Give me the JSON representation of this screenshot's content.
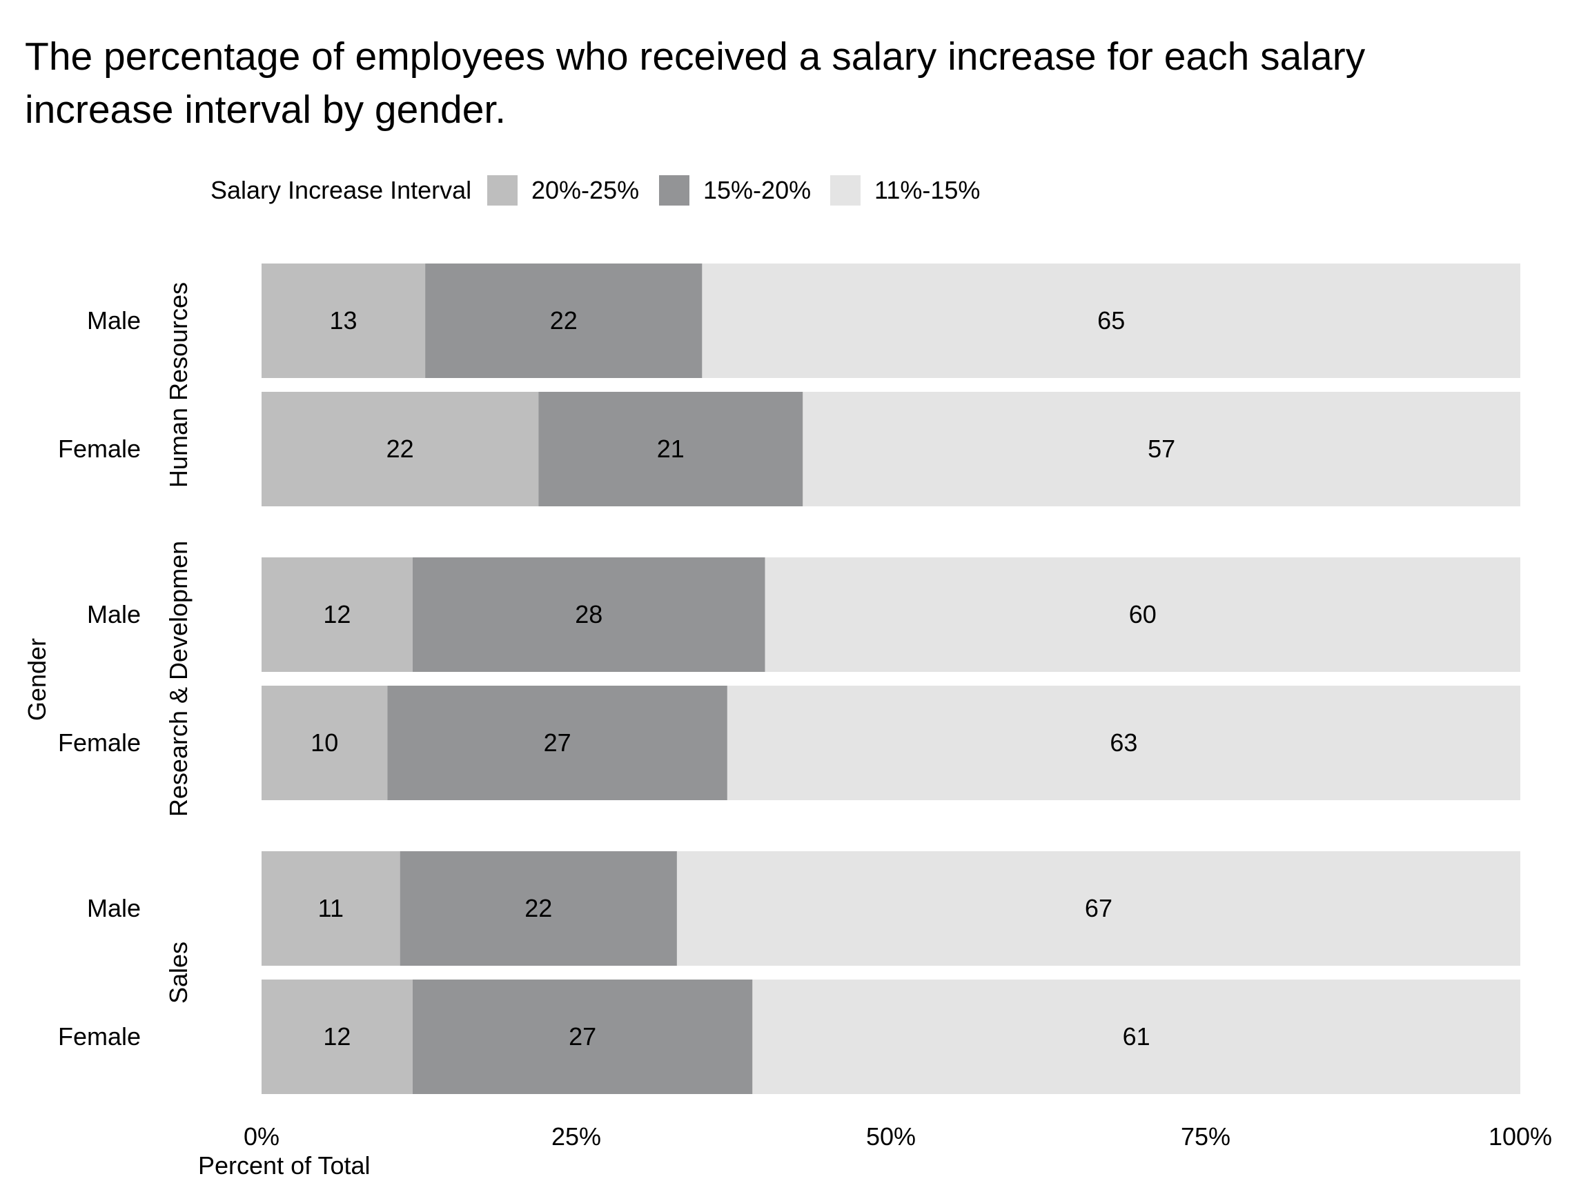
{
  "title_lines": [
    "The percentage of employees who received a salary increase for each salary",
    "increase interval by gender."
  ],
  "legend": {
    "title": "Salary Increase Interval",
    "items": [
      {
        "label": "20%-25%",
        "color": "#BEBEBE"
      },
      {
        "label": "15%-20%",
        "color": "#939496"
      },
      {
        "label": "11%-15%",
        "color": "#E4E4E4"
      }
    ]
  },
  "chart_data": {
    "type": "bar",
    "orientation": "horizontal",
    "stacked": true,
    "xlabel": "Percent of Total",
    "ylabel": "Gender",
    "xlim": [
      0,
      100
    ],
    "x_ticks": [
      "0%",
      "25%",
      "50%",
      "75%",
      "100%"
    ],
    "x_tick_values": [
      0,
      25,
      50,
      75,
      100
    ],
    "grid": false,
    "legend_position": "top",
    "series": [
      {
        "name": "20%-25%",
        "color": "#BEBEBE"
      },
      {
        "name": "15%-20%",
        "color": "#939496"
      },
      {
        "name": "11%-15%",
        "color": "#E4E4E4"
      }
    ],
    "facets": [
      {
        "label": "Human Resources",
        "rows": [
          {
            "category": "Male",
            "values": [
              13,
              22,
              65
            ]
          },
          {
            "category": "Female",
            "values": [
              22,
              21,
              57
            ]
          }
        ]
      },
      {
        "label": "Research & Developmen",
        "rows": [
          {
            "category": "Male",
            "values": [
              12,
              28,
              60
            ]
          },
          {
            "category": "Female",
            "values": [
              10,
              27,
              63
            ]
          }
        ]
      },
      {
        "label": "Sales",
        "rows": [
          {
            "category": "Male",
            "values": [
              11,
              22,
              67
            ]
          },
          {
            "category": "Female",
            "values": [
              12,
              27,
              61
            ]
          }
        ]
      }
    ]
  }
}
